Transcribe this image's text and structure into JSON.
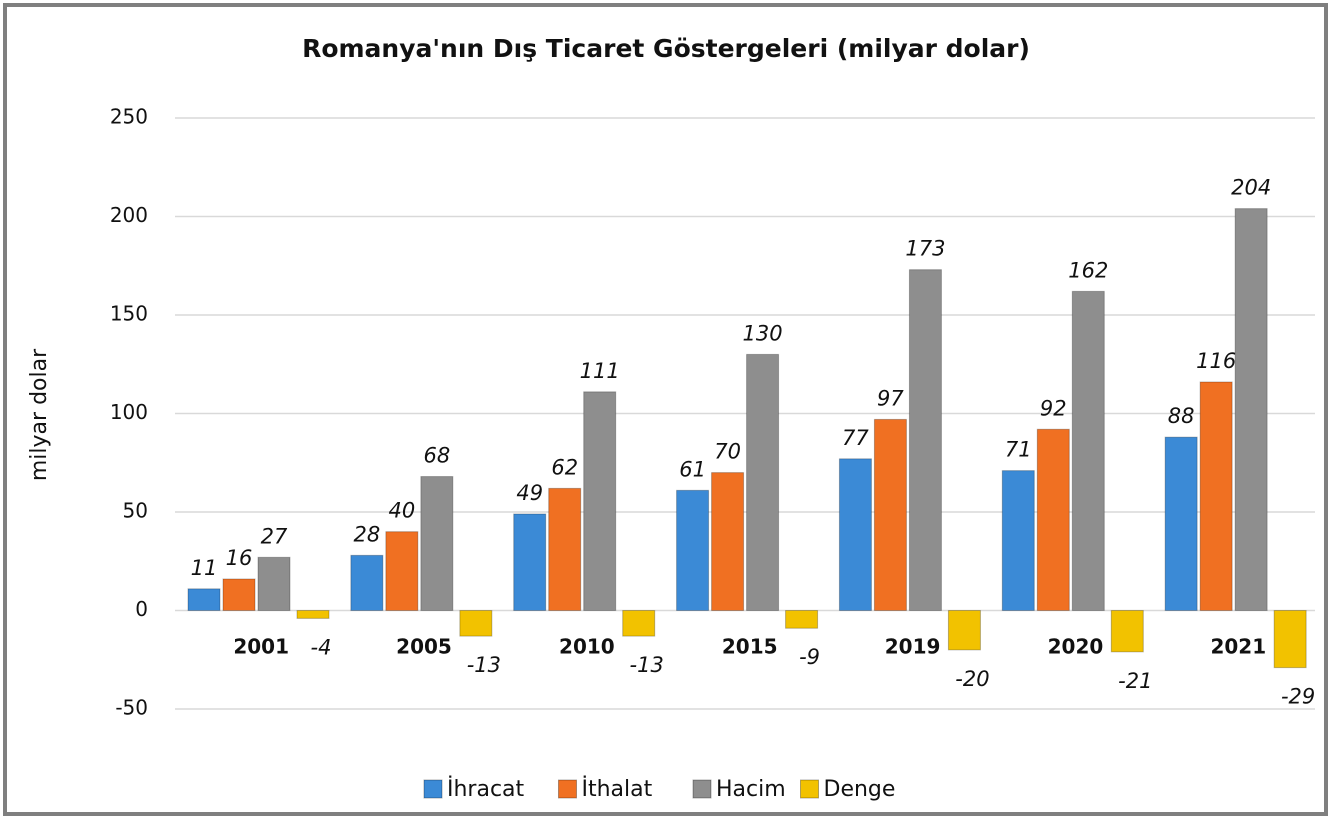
{
  "chart_data": {
    "type": "bar",
    "title": "Romanya'nın Dış Ticaret Göstergeleri  (milyar dolar)",
    "y_label": "milyar dolar",
    "categories": [
      "2001",
      "2005",
      "2010",
      "2015",
      "2019",
      "2020",
      "2021"
    ],
    "series": [
      {
        "name": "İhracat",
        "color": "#3b8ad6",
        "values": [
          11,
          28,
          49,
          61,
          77,
          71,
          88
        ]
      },
      {
        "name": "İthalat",
        "color": "#f07022",
        "values": [
          16,
          40,
          62,
          70,
          97,
          92,
          116
        ]
      },
      {
        "name": "Hacim",
        "color": "#8e8e8e",
        "values": [
          27,
          68,
          111,
          130,
          173,
          162,
          204
        ]
      },
      {
        "name": "Denge",
        "color": "#f2c200",
        "values": [
          -4,
          -13,
          -13,
          -9,
          -20,
          -21,
          -29
        ]
      }
    ],
    "ylim": [
      -50,
      250
    ],
    "yticks": [
      -50,
      0,
      50,
      100,
      150,
      200,
      250
    ],
    "grid": true,
    "legend": "bottom"
  }
}
